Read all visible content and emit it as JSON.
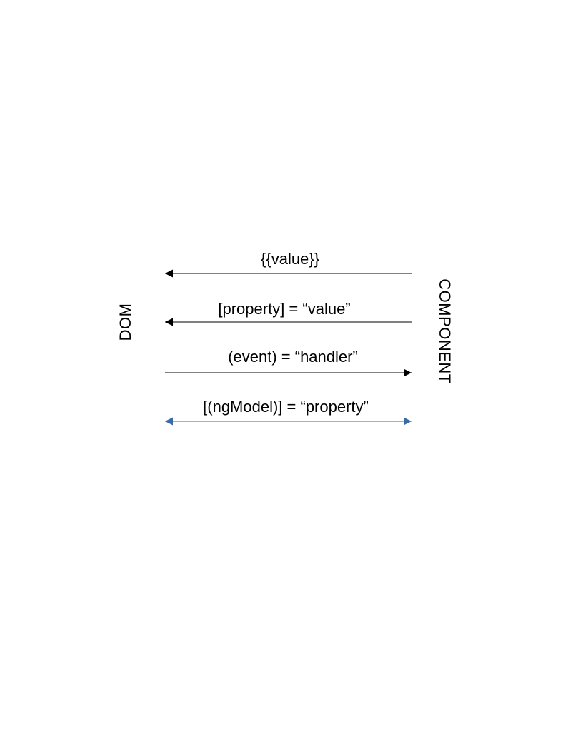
{
  "diagram": {
    "left_label": "DOM",
    "right_label": "COMPONENT",
    "bindings": [
      {
        "label": "{{value}}",
        "direction": "to-dom",
        "color": "#000000"
      },
      {
        "label": "[property] = “value”",
        "direction": "to-dom",
        "color": "#000000"
      },
      {
        "label": "(event) = “handler”",
        "direction": "to-component",
        "color": "#000000"
      },
      {
        "label": "[(ngModel)] = “property”",
        "direction": "two-way",
        "color": "#3a6aa8"
      }
    ]
  }
}
